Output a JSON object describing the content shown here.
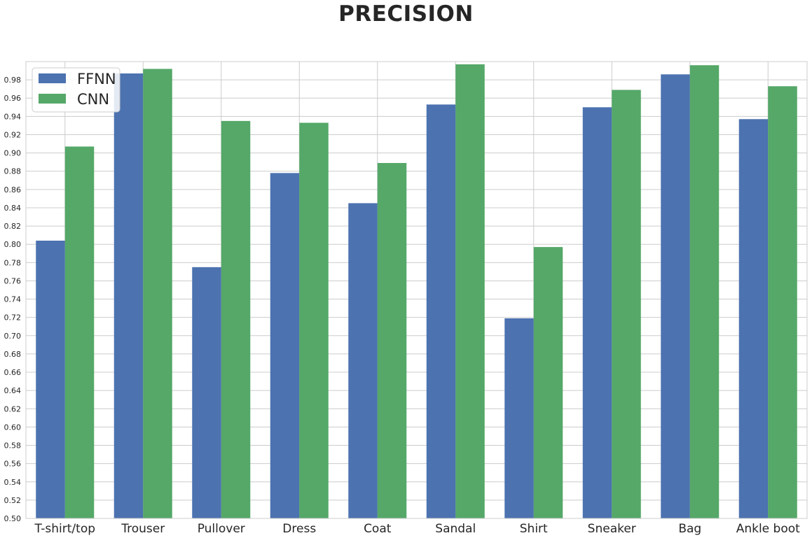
{
  "chart_data": {
    "type": "bar",
    "title": "PRECISION",
    "categories": [
      "T-shirt/top",
      "Trouser",
      "Pullover",
      "Dress",
      "Coat",
      "Sandal",
      "Shirt",
      "Sneaker",
      "Bag",
      "Ankle boot"
    ],
    "series": [
      {
        "name": "FFNN",
        "color": "#4c72b0",
        "values": [
          0.804,
          0.987,
          0.775,
          0.878,
          0.845,
          0.953,
          0.719,
          0.95,
          0.986,
          0.937
        ]
      },
      {
        "name": "CNN",
        "color": "#55a868",
        "values": [
          0.907,
          0.992,
          0.935,
          0.933,
          0.889,
          0.997,
          0.797,
          0.969,
          0.996,
          0.973
        ]
      }
    ],
    "xlabel": "",
    "ylabel": "",
    "ylim": [
      0.5,
      1.0
    ],
    "yticks": [
      "0.50",
      "0.52",
      "0.54",
      "0.56",
      "0.58",
      "0.60",
      "0.62",
      "0.64",
      "0.66",
      "0.68",
      "0.70",
      "0.72",
      "0.74",
      "0.76",
      "0.78",
      "0.80",
      "0.82",
      "0.84",
      "0.86",
      "0.88",
      "0.90",
      "0.92",
      "0.94",
      "0.96",
      "0.98"
    ],
    "grid": true,
    "legend_position": "top-left"
  }
}
